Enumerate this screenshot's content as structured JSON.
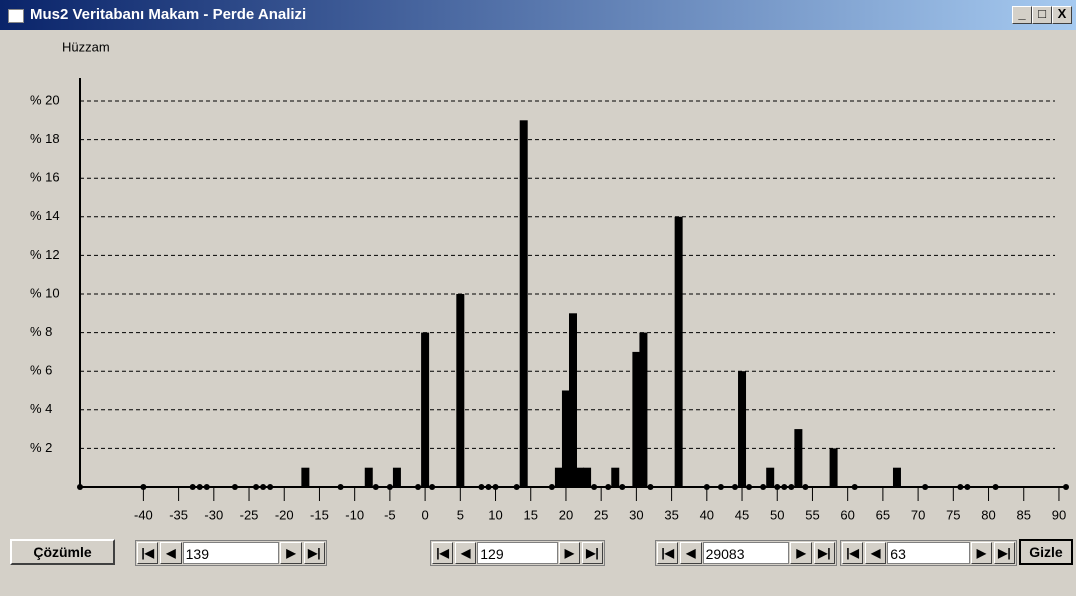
{
  "window": {
    "title": "Mus2 Veritabanı Makam - Perde Analizi"
  },
  "chart_data": {
    "type": "bar",
    "title": "Hüzzam",
    "x": [
      -49,
      -40,
      -33,
      -32,
      -31,
      -27,
      -24,
      -23,
      -22,
      -17,
      -12,
      -8,
      -7,
      -5,
      -4,
      -1,
      0,
      1,
      5,
      8,
      9,
      10,
      13,
      14,
      18,
      19,
      20,
      21,
      22,
      23,
      24,
      26,
      27,
      28,
      30,
      31,
      32,
      36,
      40,
      42,
      44,
      45,
      46,
      48,
      49,
      50,
      51,
      52,
      53,
      54,
      58,
      61,
      67,
      71,
      76,
      77,
      81,
      91
    ],
    "series": [
      {
        "color": "#000000",
        "values": [
          0,
          0,
          0,
          0,
          0,
          0,
          0,
          0,
          0,
          1,
          0,
          1,
          0,
          0,
          1,
          0,
          8,
          0,
          10,
          0,
          0,
          0,
          0,
          19,
          0,
          1,
          5,
          9,
          1,
          1,
          0,
          0,
          1,
          0,
          7,
          8,
          0,
          14,
          0,
          0,
          0,
          6,
          0,
          0,
          1,
          0,
          0,
          0,
          3,
          0,
          2,
          0,
          1,
          0,
          0,
          0,
          0,
          0
        ]
      }
    ],
    "xlim": [
      -49,
      91
    ],
    "ylim": [
      0,
      21
    ],
    "xticks": [
      -40,
      -35,
      -30,
      -25,
      -20,
      -15,
      -10,
      -5,
      0,
      5,
      10,
      15,
      20,
      25,
      30,
      35,
      40,
      45,
      50,
      55,
      60,
      65,
      70,
      75,
      80,
      85,
      90
    ],
    "yticks": [
      {
        "value": 2,
        "label": "% 2"
      },
      {
        "value": 4,
        "label": "% 4"
      },
      {
        "value": 6,
        "label": "% 6"
      },
      {
        "value": 8,
        "label": "% 8"
      },
      {
        "value": 10,
        "label": "% 10"
      },
      {
        "value": 12,
        "label": "% 12"
      },
      {
        "value": 14,
        "label": "% 14"
      },
      {
        "value": 16,
        "label": "% 16"
      },
      {
        "value": 18,
        "label": "% 18"
      },
      {
        "value": 20,
        "label": "% 20"
      }
    ],
    "grid": true
  },
  "controls": {
    "buttons": [
      "Çözümle",
      "Gizle"
    ],
    "navigators": [
      "139",
      "129",
      "29083",
      "63"
    ]
  }
}
